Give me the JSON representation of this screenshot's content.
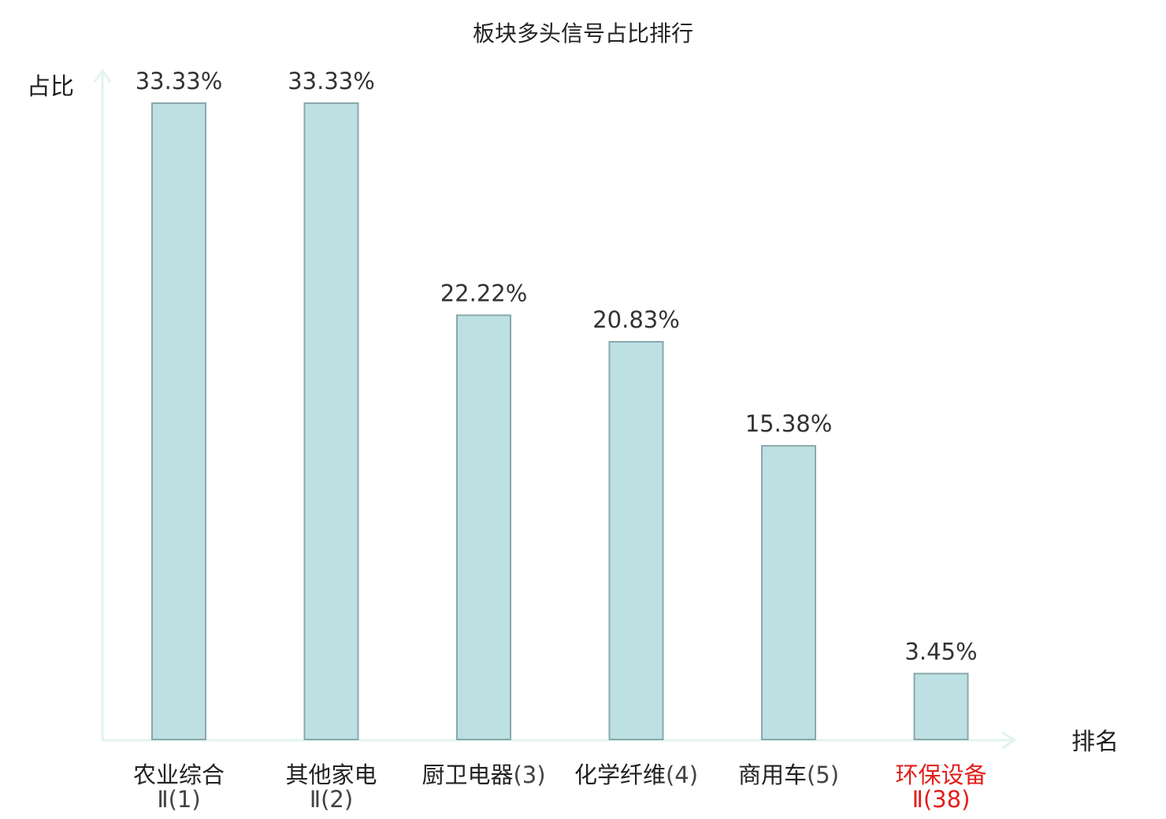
{
  "chart_data": {
    "type": "bar",
    "title": "板块多头信号占比排行",
    "ylabel": "占比",
    "xlabel": "排名",
    "categories": [
      {
        "name": "农业综合",
        "suffix": "Ⅱ(1)",
        "highlight": false
      },
      {
        "name": "其他家电",
        "suffix": "Ⅱ(2)",
        "highlight": false
      },
      {
        "name": "厨卫电器",
        "suffix": "(3)",
        "highlight": false
      },
      {
        "name": "化学纤维",
        "suffix": "(4)",
        "highlight": false
      },
      {
        "name": "商用车",
        "suffix": "(5)",
        "highlight": false
      },
      {
        "name": "环保设备",
        "suffix": "Ⅱ(38)",
        "highlight": true
      }
    ],
    "values": [
      33.33,
      33.33,
      22.22,
      20.83,
      15.38,
      3.45
    ],
    "value_labels": [
      "33.33%",
      "33.33%",
      "22.22%",
      "20.83%",
      "15.38%",
      "3.45%"
    ],
    "ylim": [
      0,
      33.33
    ],
    "grid": false,
    "legend": "none",
    "colors": {
      "bar_fill": "#bde0e3",
      "bar_stroke": "#8aa8aa",
      "axis": "#e2f3f0",
      "highlight_text": "#e0201c"
    }
  }
}
